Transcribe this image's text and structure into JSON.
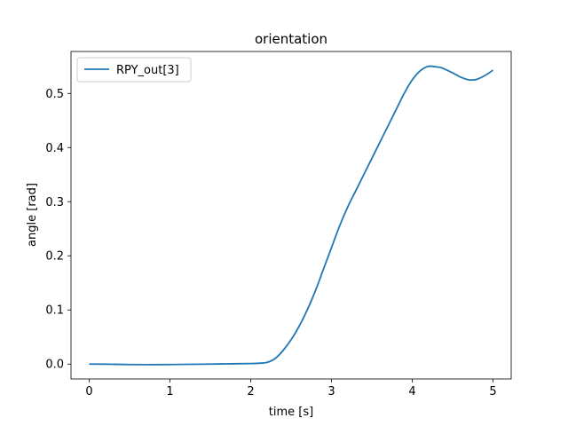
{
  "chart_data": {
    "type": "line",
    "title": "orientation",
    "xlabel": "time [s]",
    "ylabel": "angle [rad]",
    "xlim": [
      -0.225,
      5.225
    ],
    "ylim": [
      -0.0275,
      0.5775
    ],
    "xticks": [
      0,
      1,
      2,
      3,
      4,
      5
    ],
    "xtick_labels": [
      "0",
      "1",
      "2",
      "3",
      "4",
      "5"
    ],
    "yticks": [
      0.0,
      0.1,
      0.2,
      0.3,
      0.4,
      0.5
    ],
    "ytick_labels": [
      "0.0",
      "0.1",
      "0.2",
      "0.3",
      "0.4",
      "0.5"
    ],
    "grid": false,
    "legend_position": "upper-left",
    "series": [
      {
        "name": "RPY_out[3]",
        "color": "#1f77b4",
        "x": [
          0.0,
          0.25,
          0.5,
          0.75,
          1.0,
          1.25,
          1.5,
          1.75,
          2.0,
          2.1,
          2.2,
          2.3,
          2.4,
          2.5,
          2.6,
          2.7,
          2.8,
          2.9,
          3.0,
          3.1,
          3.2,
          3.3,
          3.4,
          3.5,
          3.6,
          3.7,
          3.8,
          3.9,
          4.0,
          4.1,
          4.2,
          4.3,
          4.35,
          4.4,
          4.5,
          4.6,
          4.7,
          4.75,
          4.8,
          4.9,
          5.0
        ],
        "y": [
          0.0,
          -0.0003,
          -0.0008,
          -0.001,
          -0.0008,
          -0.0005,
          0.0,
          0.0005,
          0.001,
          0.0015,
          0.003,
          0.01,
          0.025,
          0.045,
          0.07,
          0.1,
          0.135,
          0.175,
          0.215,
          0.255,
          0.29,
          0.32,
          0.35,
          0.38,
          0.41,
          0.44,
          0.47,
          0.5,
          0.525,
          0.542,
          0.55,
          0.549,
          0.548,
          0.545,
          0.538,
          0.53,
          0.525,
          0.525,
          0.526,
          0.533,
          0.543
        ]
      }
    ]
  }
}
